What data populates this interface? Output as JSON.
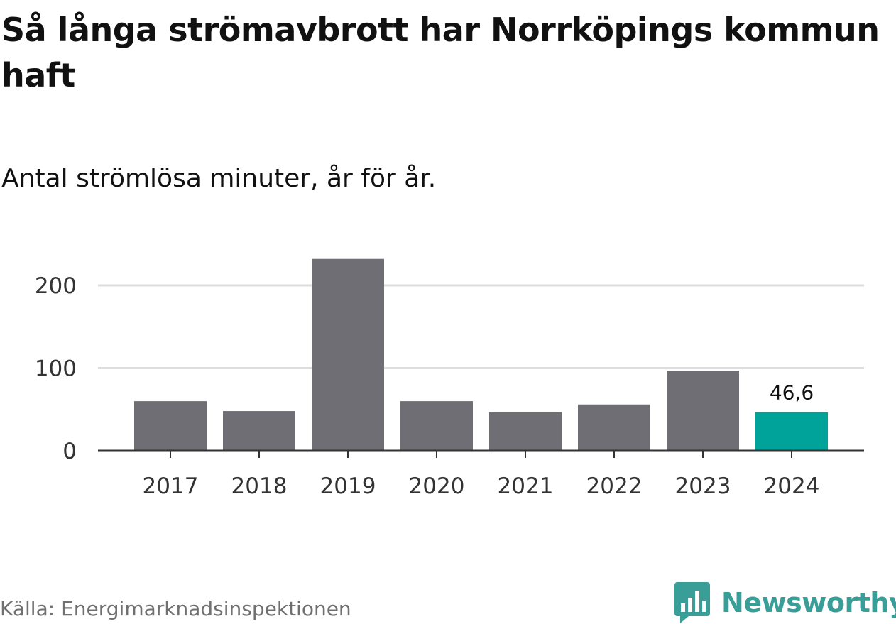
{
  "header": {
    "title": "Så långa strömavbrott har Norrköpings kommun haft",
    "subtitle": "Antal strömlösa minuter, år för år."
  },
  "footer": {
    "source": "Källa: Energimarknadsinspektionen",
    "brand": "Newsworthy",
    "brand_icon": "bar-chart-speech-bubble-icon"
  },
  "colors": {
    "bar": "#6f6e74",
    "highlight": "#00a39a",
    "grid": "#dddddd",
    "axis": "#333333",
    "brand": "#3a9e98"
  },
  "chart_data": {
    "type": "bar",
    "title": "Så långa strömavbrott har Norrköpings kommun haft",
    "subtitle": "Antal strömlösa minuter, år för år.",
    "categories": [
      "2017",
      "2018",
      "2019",
      "2020",
      "2021",
      "2022",
      "2023",
      "2024"
    ],
    "values": [
      60,
      48,
      232,
      60,
      46.6,
      56,
      97,
      46.6
    ],
    "highlight_index": 7,
    "data_labels": [
      {
        "index": 7,
        "text": "46,6"
      }
    ],
    "ylim": [
      0,
      240
    ],
    "yticks": [
      0,
      100,
      200
    ],
    "ytick_labels": [
      "0",
      "100",
      "200"
    ],
    "grid": true
  }
}
